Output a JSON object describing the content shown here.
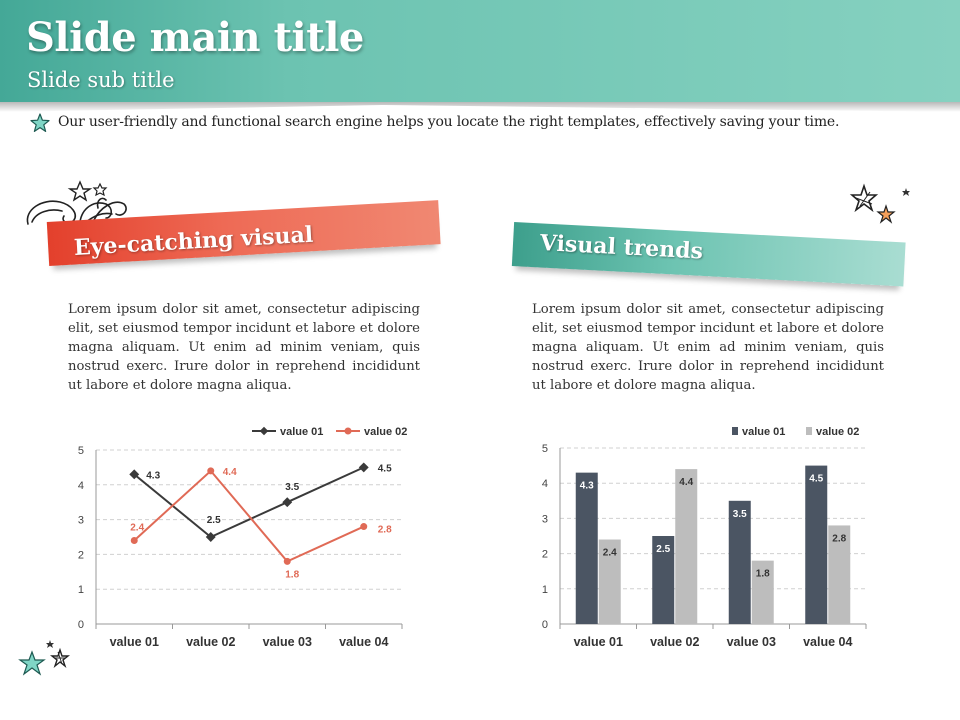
{
  "header": {
    "title": "Slide main title",
    "subtitle": "Slide sub title"
  },
  "tagline": "Our user-friendly and functional search engine helps you locate the right templates, effectively saving your time.",
  "left_panel": {
    "banner": "Eye-catching visual",
    "banner_color": "#e8452e",
    "paragraph": "Lorem ipsum dolor sit amet, consectetur adipiscing elit, set eiusmod tempor incidunt et labore et dolore magna aliquam. Ut enim ad minim veniam, quis nostrud exerc. Irure dolor in reprehend incididunt ut labore et dolore magna aliqua."
  },
  "right_panel": {
    "banner": "Visual trends",
    "banner_color": "#4fae9c",
    "paragraph": "Lorem ipsum dolor sit amet, consectetur adipiscing elit, set eiusmod tempor incidunt et labore et dolore magna aliquam. Ut enim ad minim veniam, quis nostrud exerc. Irure dolor in reprehend incididunt ut labore et dolore magna aliqua."
  },
  "icons": [
    "star-icon",
    "floral-doodle-icon",
    "star-cluster-icon"
  ],
  "chart_data": [
    {
      "type": "line",
      "categories": [
        "value 01",
        "value 02",
        "value 03",
        "value 04"
      ],
      "series": [
        {
          "name": "value 01",
          "values": [
            4.3,
            2.5,
            3.5,
            4.5
          ],
          "color": "#3a3a3a"
        },
        {
          "name": "value 02",
          "values": [
            2.4,
            4.4,
            1.8,
            2.8
          ],
          "color": "#e06a56"
        }
      ],
      "ylim": [
        0,
        5
      ],
      "yticks": [
        0,
        1,
        2,
        3,
        4,
        5
      ],
      "legend": "top-right",
      "grid": true
    },
    {
      "type": "bar",
      "categories": [
        "value 01",
        "value 02",
        "value 03",
        "value 04"
      ],
      "series": [
        {
          "name": "value 01",
          "values": [
            4.3,
            2.5,
            3.5,
            4.5
          ],
          "color": "#4b5563"
        },
        {
          "name": "value 02",
          "values": [
            2.4,
            4.4,
            1.8,
            2.8
          ],
          "color": "#bdbdbd"
        }
      ],
      "ylim": [
        0,
        5
      ],
      "yticks": [
        0,
        1,
        2,
        3,
        4,
        5
      ],
      "legend": "top-right",
      "grid": true
    }
  ]
}
